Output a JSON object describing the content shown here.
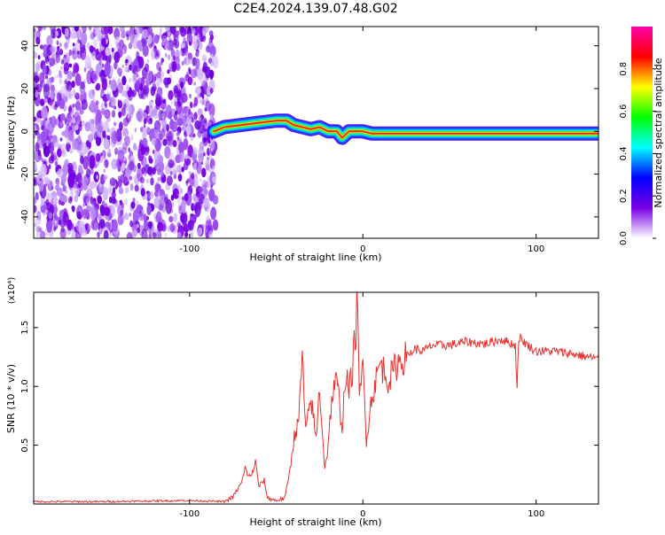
{
  "title": "C2E4.2024.139.07.48.G02",
  "colors": {
    "snr_line": "#e8302c",
    "low_amplitude": "#7a00e6",
    "frame": "#000000"
  },
  "chart_data": [
    {
      "type": "heatmap",
      "xlabel": "Height of straight line (km)",
      "ylabel": "Frequency (Hz)",
      "xlim": [
        -190,
        136
      ],
      "ylim": [
        -50,
        49
      ],
      "xticks": [
        -100,
        0,
        100
      ],
      "yticks": [
        -40,
        -20,
        0,
        20,
        40
      ],
      "grid": false,
      "noise_region_x": [
        -190,
        -85
      ],
      "signal_track": {
        "x": [
          -86,
          -80,
          -70,
          -60,
          -50,
          -44,
          -40,
          -35,
          -30,
          -25,
          -20,
          -15,
          -12,
          -8,
          -5,
          0,
          5,
          10,
          20,
          40,
          60,
          80,
          100,
          120,
          136
        ],
        "frequency": [
          0,
          2,
          3,
          4,
          5,
          5,
          3,
          2,
          1,
          2,
          0,
          0,
          -3,
          0,
          0,
          0,
          -1,
          -1,
          -1,
          -1,
          -1,
          -1,
          -1,
          -1,
          -1
        ]
      },
      "colorbar": {
        "label": "Normalized spectral amplitude",
        "range": [
          0.0,
          1.0
        ],
        "ticks": [
          "0.0",
          "0.2",
          "0.4",
          "0.6",
          "0.8"
        ],
        "colormap": [
          "#ffffff",
          "#7a00e6",
          "#0000ff",
          "#00ffff",
          "#00ff00",
          "#ffff00",
          "#ff0000",
          "#ff00aa"
        ]
      }
    },
    {
      "type": "line",
      "xlabel": "Height of straight line (km)",
      "ylabel": "SNR (10 * v/v)",
      "y_multiplier": "(x10⁴)",
      "xlim": [
        -190,
        136
      ],
      "ylim": [
        0.0,
        1.8
      ],
      "xticks": [
        -100,
        0,
        100
      ],
      "yticks": [
        "0.5",
        "1.0",
        "1.5"
      ],
      "yticks_values": [
        0.5,
        1.0,
        1.5
      ],
      "grid": false,
      "series": [
        {
          "x": [
            -190,
            -150,
            -100,
            -80,
            -75,
            -70,
            -68,
            -65,
            -62,
            -60,
            -57,
            -55,
            -50,
            -45,
            -42,
            -40,
            -37,
            -35,
            -33,
            -30,
            -27,
            -25,
            -22,
            -20,
            -18,
            -15,
            -12,
            -10,
            -8,
            -6,
            -4,
            -3,
            -2,
            -1,
            0,
            2,
            5,
            10,
            15,
            20,
            25,
            30,
            35,
            40,
            50,
            60,
            70,
            80,
            88,
            89,
            90,
            95,
            100,
            110,
            120,
            130,
            136
          ],
          "y": [
            0.02,
            0.02,
            0.03,
            0.02,
            0.06,
            0.18,
            0.3,
            0.22,
            0.35,
            0.15,
            0.2,
            0.05,
            0.03,
            0.05,
            0.3,
            0.55,
            0.7,
            1.28,
            0.6,
            0.9,
            0.55,
            1.0,
            0.3,
            0.5,
            0.9,
            1.05,
            0.65,
            1.1,
            0.95,
            1.15,
            1.5,
            1.82,
            0.85,
            1.0,
            1.2,
            0.55,
            0.9,
            1.2,
            1.05,
            1.2,
            1.25,
            1.32,
            1.3,
            1.35,
            1.35,
            1.38,
            1.36,
            1.4,
            1.35,
            0.98,
            1.42,
            1.35,
            1.3,
            1.3,
            1.28,
            1.25,
            1.24
          ]
        }
      ]
    }
  ]
}
